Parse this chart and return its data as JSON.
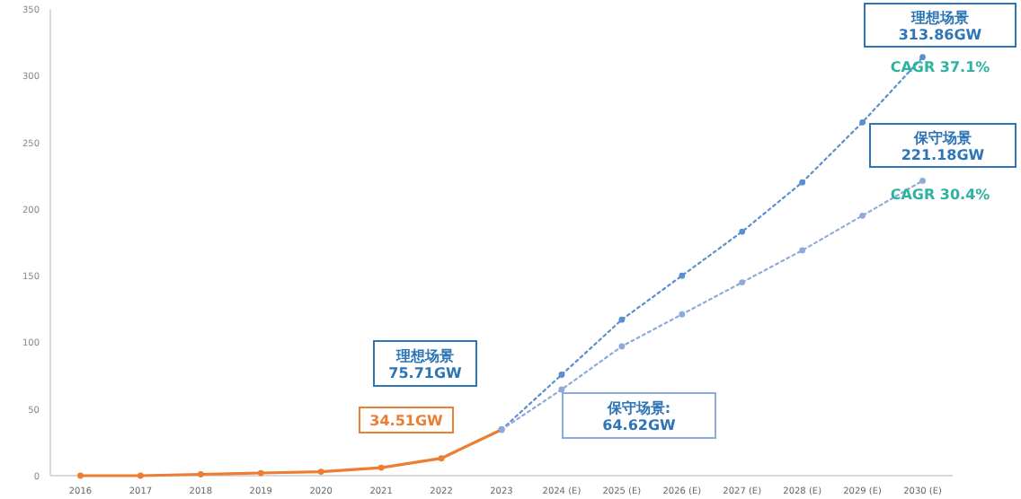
{
  "chart_data": {
    "type": "line",
    "categories": [
      "2016",
      "2017",
      "2018",
      "2019",
      "2020",
      "2021",
      "2022",
      "2023",
      "2024 (E)",
      "2025 (E)",
      "2026 (E)",
      "2027 (E)",
      "2028 (E)",
      "2029 (E)",
      "2030 (E)"
    ],
    "ylim": [
      0,
      350
    ],
    "yticks": [
      0,
      50,
      100,
      150,
      200,
      250,
      300,
      350
    ],
    "marker": "circle",
    "series": [
      {
        "color": "#ed7d31",
        "line_style": "solid",
        "values": [
          0,
          0,
          1,
          2,
          3,
          6,
          13,
          34.51,
          null,
          null,
          null,
          null,
          null,
          null,
          null
        ]
      },
      {
        "color": "#5b8fd0",
        "line_style": "dotted",
        "values": [
          null,
          null,
          null,
          null,
          null,
          null,
          null,
          34.51,
          75.71,
          117,
          150,
          183,
          220,
          265,
          313.86
        ]
      },
      {
        "color": "#8eaadb",
        "line_style": "dotted",
        "values": [
          null,
          null,
          null,
          null,
          null,
          null,
          null,
          34.51,
          64.62,
          97,
          121,
          145,
          169,
          195,
          221.18
        ]
      }
    ],
    "annotations": [
      "34.51GW",
      "理想场景\n75.71GW",
      "保守场景:\n64.62GW",
      "理想场景\n313.86GW",
      "CAGR 37.1%",
      "保守场景\n221.18GW",
      "CAGR 30.4%"
    ]
  }
}
